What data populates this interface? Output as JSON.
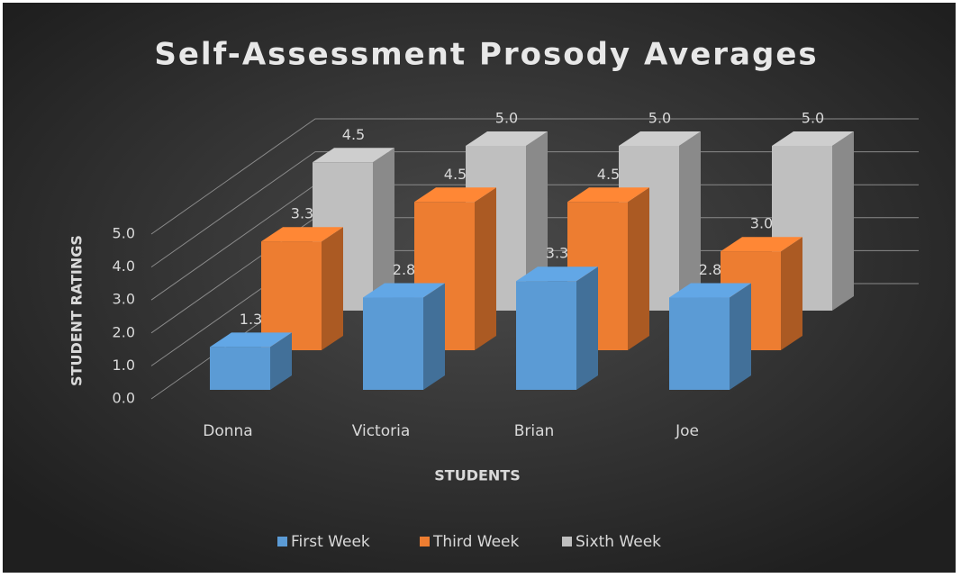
{
  "chart_data": {
    "type": "bar3d",
    "title": "Self-Assessment  Prosody  Averages",
    "x_label": "STUDENTS",
    "y_label": "STUDENT RATINGS",
    "categories": [
      "Donna",
      "Victoria",
      "Brian",
      "Joe"
    ],
    "series": [
      {
        "name": "First Week",
        "color": "#5b9bd5",
        "values": [
          1.3,
          2.8,
          3.3,
          2.8
        ],
        "value_labels": [
          "1.3",
          "2.8",
          "3.3",
          "2.8"
        ]
      },
      {
        "name": "Third Week",
        "color": "#ed7d31",
        "values": [
          3.3,
          4.5,
          4.5,
          3.0
        ],
        "value_labels": [
          "3.3",
          "4.5",
          "4.5",
          "3.0"
        ]
      },
      {
        "name": "Sixth Week",
        "color": "#bfbfbf",
        "values": [
          4.5,
          5.0,
          5.0,
          5.0
        ],
        "value_labels": [
          "4.5",
          "5.0",
          "5.0",
          "5.0"
        ]
      }
    ],
    "ylim": [
      0,
      5
    ],
    "yticks": [
      {
        "value": 0,
        "label": "0.0"
      },
      {
        "value": 1,
        "label": "1.0"
      },
      {
        "value": 2,
        "label": "2.0"
      },
      {
        "value": 3,
        "label": "3.0"
      },
      {
        "value": 4,
        "label": "4.0"
      },
      {
        "value": 5,
        "label": "5.0"
      }
    ],
    "grid": true,
    "legend": "bottom"
  }
}
